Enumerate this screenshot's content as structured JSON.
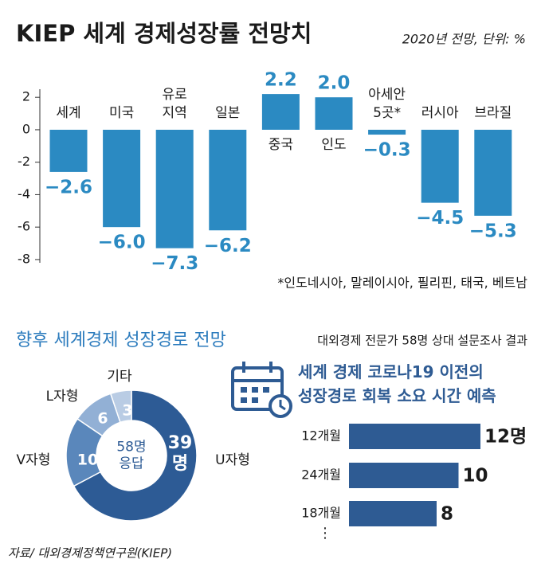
{
  "chart_data": [
    {
      "type": "bar",
      "title": "KIEP 세계 경제성장률 전망치",
      "subtitle": "2020년 전망, 단위: %",
      "categories": [
        "세계",
        "미국",
        "유로\n지역",
        "일본",
        "중국",
        "인도",
        "아세안\n5곳*",
        "러시아",
        "브라질"
      ],
      "values": [
        -2.6,
        -6.0,
        -7.3,
        -6.2,
        2.2,
        2.0,
        -0.3,
        -4.5,
        -5.3
      ],
      "value_labels": [
        "−2.6",
        "−6.0",
        "−7.3",
        "−6.2",
        "2.2",
        "2.0",
        "−0.3",
        "−4.5",
        "−5.3"
      ],
      "color": "#2b8ac2",
      "ylim": [
        -8.2,
        2.5
      ],
      "yticks": [
        2,
        0,
        -2,
        -4,
        -6,
        -8
      ],
      "note": "*인도네시아, 말레이시아, 필리핀, 태국, 베트남"
    },
    {
      "type": "pie",
      "title": "향후 세계경제 성장경로 전망",
      "subtitle": "대외경제 전문가 58명 상대 설문조사 결과",
      "center_label": "58명\n응답",
      "categories": [
        "U자형",
        "V자형",
        "L자형",
        "기타"
      ],
      "values": [
        39,
        10,
        6,
        3
      ],
      "value_labels": [
        "39\n명",
        "10",
        "6",
        "3"
      ],
      "colors": [
        "#2d5b95",
        "#5a87bb",
        "#92b0d5",
        "#b9cce4"
      ]
    },
    {
      "type": "hbar",
      "title": "세계 경제 코로나19 이전의\n성장경로 회복 소요 시간 예측",
      "categories": [
        "12개월",
        "24개월",
        "18개월"
      ],
      "values": [
        12,
        10,
        8
      ],
      "value_labels": [
        "12명",
        "10",
        "8"
      ],
      "color": "#2e5b93",
      "continuation": "⋮"
    }
  ],
  "source": "자료/ 대외경제정책연구원(KIEP)"
}
